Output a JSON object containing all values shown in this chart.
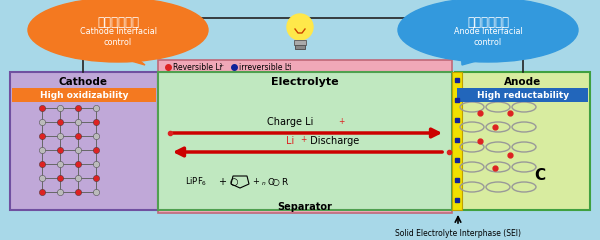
{
  "bg_color": "#a8d8e8",
  "cathode_bubble_text_jp": "正極界面制御",
  "cathode_bubble_text_en": "Cathode Interfacial\ncontrol",
  "anode_bubble_text_jp": "負極界面制御",
  "anode_bubble_text_en": "Anode Interfacial\ncontrol",
  "cathode_bubble_color": "#f47920",
  "anode_bubble_color": "#3399dd",
  "cathode_box_color": "#c0a8d8",
  "electrolyte_box_color": "#c0e8c0",
  "anode_box_color": "#d8eca0",
  "separator_color": "#f0a8b8",
  "sei_strip_color": "#f0e000",
  "orange_label_color": "#f47920",
  "blue_label_color": "#2266bb",
  "reversible_color": "#dd2222",
  "irreversible_color": "#112299",
  "charge_arrow_color": "#cc0000",
  "li_color": "#dd2222",
  "wire_color": "#222222",
  "lattice_red": "#dd2222",
  "lattice_gray": "#bbbbbb",
  "lattice_line": "#666666",
  "graphene_color": "#999999",
  "dot_blue": "#112299",
  "dot_red": "#dd2222"
}
